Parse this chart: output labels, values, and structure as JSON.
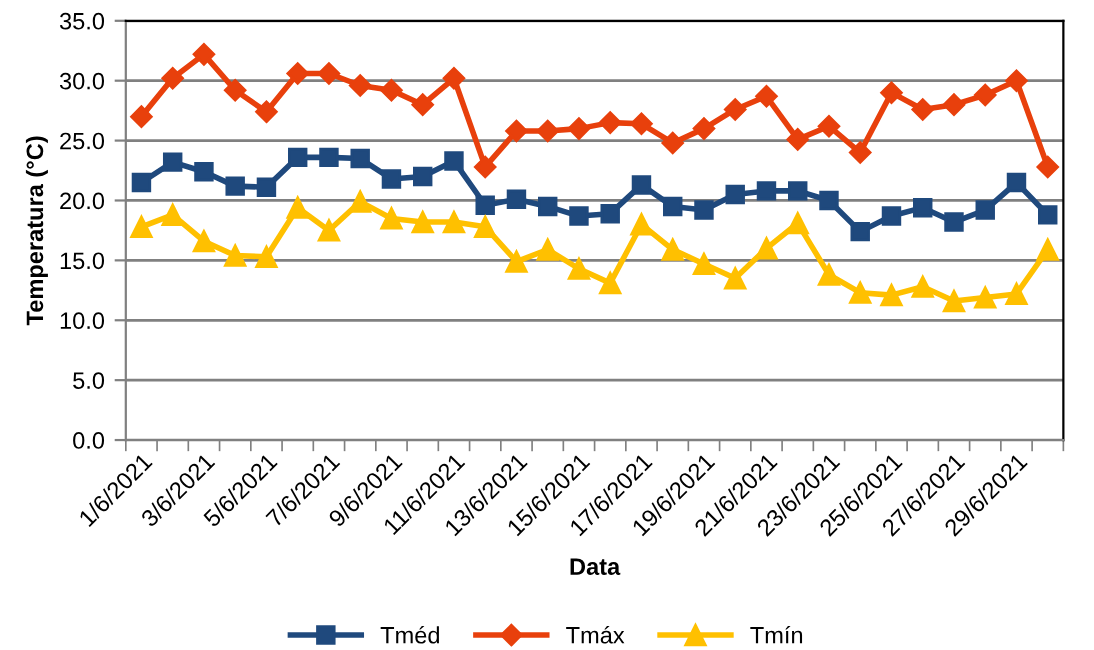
{
  "chart_data": {
    "type": "line",
    "xlabel": "Data",
    "ylabel": "Temperatura (°C)",
    "categories": [
      "1/6/2021",
      null,
      "3/6/2021",
      null,
      "5/6/2021",
      null,
      "7/6/2021",
      null,
      "9/6/2021",
      null,
      "11/6/2021",
      null,
      "13/6/2021",
      null,
      "15/6/2021",
      null,
      "17/6/2021",
      null,
      "19/6/2021",
      null,
      "21/6/2021",
      null,
      "23/6/2021",
      null,
      "25/6/2021",
      null,
      "27/6/2021",
      null,
      "29/6/2021",
      null
    ],
    "series": [
      {
        "name": "Tméd",
        "color": "#1f497d",
        "marker": "square",
        "values": [
          21.5,
          23.2,
          22.4,
          21.2,
          21.1,
          23.6,
          23.6,
          23.5,
          21.8,
          22.0,
          23.3,
          19.6,
          20.1,
          19.5,
          18.7,
          18.9,
          21.3,
          19.5,
          19.2,
          20.5,
          20.8,
          20.8,
          20.0,
          17.4,
          18.7,
          19.4,
          18.2,
          19.2,
          21.5,
          18.8
        ]
      },
      {
        "name": "Tmáx",
        "color": "#e8400c",
        "marker": "diamond",
        "values": [
          27.0,
          30.2,
          32.2,
          29.2,
          27.4,
          30.6,
          30.6,
          29.6,
          29.2,
          28.0,
          30.2,
          22.8,
          25.8,
          25.8,
          26.0,
          26.5,
          26.4,
          24.8,
          26.0,
          27.6,
          28.7,
          25.1,
          26.2,
          24.0,
          29.0,
          27.6,
          28.0,
          28.8,
          30.0,
          22.8
        ]
      },
      {
        "name": "Tmín",
        "color": "#ffc000",
        "marker": "triangle",
        "values": [
          17.8,
          18.8,
          16.6,
          15.4,
          15.3,
          19.4,
          17.5,
          19.9,
          18.5,
          18.2,
          18.2,
          17.8,
          14.9,
          15.9,
          14.3,
          13.1,
          18.0,
          15.9,
          14.7,
          13.5,
          16.0,
          18.1,
          13.8,
          12.3,
          12.1,
          12.8,
          11.6,
          11.9,
          12.2,
          15.9
        ]
      }
    ],
    "ylim": [
      0,
      35
    ],
    "yticks": [
      {
        "value": 0,
        "label": "0.0"
      },
      {
        "value": 5,
        "label": "5.0"
      },
      {
        "value": 10,
        "label": "10.0"
      },
      {
        "value": 15,
        "label": "15.0"
      },
      {
        "value": 20,
        "label": "20.0"
      },
      {
        "value": 25,
        "label": "25.0"
      },
      {
        "value": 30,
        "label": "30.0"
      },
      {
        "value": 35,
        "label": "35.0"
      }
    ],
    "grid": "y",
    "legend": "bottom",
    "line_style": "solid"
  }
}
